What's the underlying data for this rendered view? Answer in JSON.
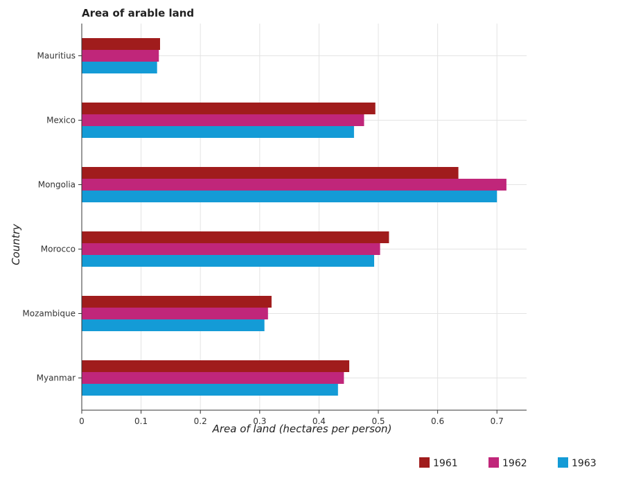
{
  "chart_data": {
    "type": "bar",
    "orientation": "horizontal",
    "title": "Area of arable land",
    "xlabel": "Area of land (hectares per person)",
    "ylabel": "Country",
    "xlim": [
      0,
      0.75
    ],
    "x_ticks": [
      "0",
      "0.1",
      "0.2",
      "0.3",
      "0.4",
      "0.5",
      "0.6",
      "0.7"
    ],
    "grid": true,
    "legend_position": "bottom-right",
    "categories": [
      "Mauritius",
      "Mexico",
      "Mongolia",
      "Morocco",
      "Mozambique",
      "Myanmar"
    ],
    "series": [
      {
        "name": "1961",
        "color": "#a01c1c",
        "values": [
          0.132,
          0.495,
          0.635,
          0.518,
          0.32,
          0.451
        ]
      },
      {
        "name": "1962",
        "color": "#c0267a",
        "values": [
          0.13,
          0.476,
          0.716,
          0.503,
          0.314,
          0.442
        ]
      },
      {
        "name": "1963",
        "color": "#149bd6",
        "values": [
          0.127,
          0.459,
          0.7,
          0.493,
          0.308,
          0.432
        ]
      }
    ]
  }
}
